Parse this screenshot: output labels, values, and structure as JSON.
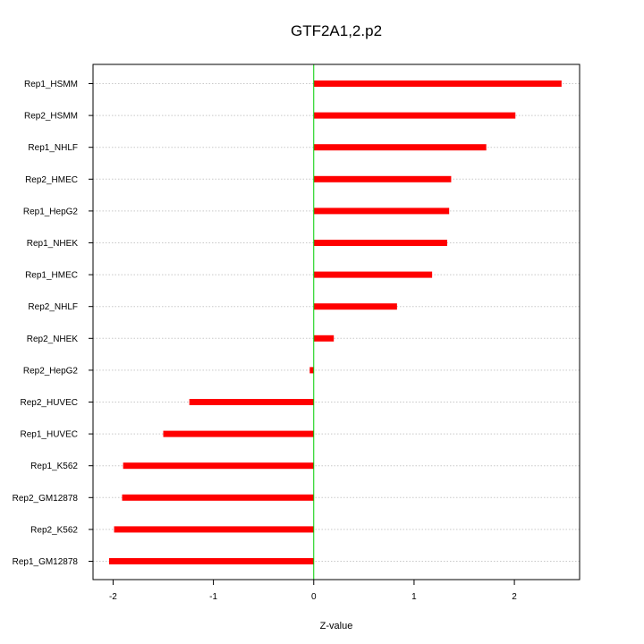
{
  "chart_data": {
    "type": "bar",
    "orientation": "horizontal",
    "title": "GTF2A1,2.p2",
    "xlabel": "Z-value",
    "ylabel": "",
    "xlim": [
      -2.2,
      2.65
    ],
    "xticks": [
      -2,
      -1,
      0,
      1,
      2
    ],
    "categories": [
      "Rep1_HSMM",
      "Rep2_HSMM",
      "Rep1_NHLF",
      "Rep2_HMEC",
      "Rep1_HepG2",
      "Rep1_NHEK",
      "Rep1_HMEC",
      "Rep2_NHLF",
      "Rep2_NHEK",
      "Rep2_HepG2",
      "Rep2_HUVEC",
      "Rep1_HUVEC",
      "Rep1_K562",
      "Rep2_GM12878",
      "Rep2_K562",
      "Rep1_GM12878"
    ],
    "values": [
      2.47,
      2.01,
      1.72,
      1.37,
      1.35,
      1.33,
      1.18,
      0.83,
      0.2,
      -0.04,
      -1.24,
      -1.5,
      -1.9,
      -1.91,
      -1.99,
      -2.04
    ],
    "grid": "horizontal-dotted",
    "bar_color": "#ff0000",
    "zero_line_color": "#00cc00"
  }
}
